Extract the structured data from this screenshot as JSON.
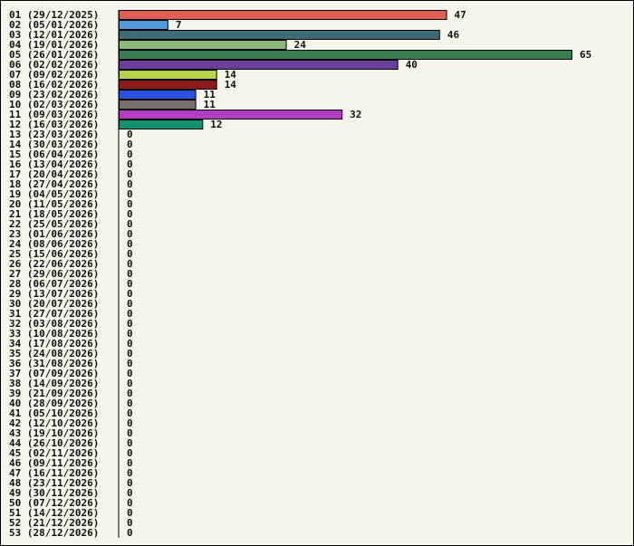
{
  "chart_data": {
    "type": "bar",
    "orientation": "horizontal",
    "title": "",
    "xlabel": "",
    "ylabel": "",
    "grid": false,
    "legend": "none",
    "xlim": [
      0,
      65
    ],
    "categories": [
      "01 (29/12/2025)",
      "02 (05/01/2026)",
      "03 (12/01/2026)",
      "04 (19/01/2026)",
      "05 (26/01/2026)",
      "06 (02/02/2026)",
      "07 (09/02/2026)",
      "08 (16/02/2026)",
      "09 (23/02/2026)",
      "10 (02/03/2026)",
      "11 (09/03/2026)",
      "12 (16/03/2026)",
      "13 (23/03/2026)",
      "14 (30/03/2026)",
      "15 (06/04/2026)",
      "16 (13/04/2026)",
      "17 (20/04/2026)",
      "18 (27/04/2026)",
      "19 (04/05/2026)",
      "20 (11/05/2026)",
      "21 (18/05/2026)",
      "22 (25/05/2026)",
      "23 (01/06/2026)",
      "24 (08/06/2026)",
      "25 (15/06/2026)",
      "26 (22/06/2026)",
      "27 (29/06/2026)",
      "28 (06/07/2026)",
      "29 (13/07/2026)",
      "30 (20/07/2026)",
      "31 (27/07/2026)",
      "32 (03/08/2026)",
      "33 (10/08/2026)",
      "34 (17/08/2026)",
      "35 (24/08/2026)",
      "36 (31/08/2026)",
      "37 (07/09/2026)",
      "38 (14/09/2026)",
      "39 (21/09/2026)",
      "40 (28/09/2026)",
      "41 (05/10/2026)",
      "42 (12/10/2026)",
      "43 (19/10/2026)",
      "44 (26/10/2026)",
      "45 (02/11/2026)",
      "46 (09/11/2026)",
      "47 (16/11/2026)",
      "48 (23/11/2026)",
      "49 (30/11/2026)",
      "50 (07/12/2026)",
      "51 (14/12/2026)",
      "52 (21/12/2026)",
      "53 (28/12/2026)"
    ],
    "values": [
      47,
      7,
      46,
      24,
      65,
      40,
      14,
      14,
      11,
      11,
      32,
      12,
      0,
      0,
      0,
      0,
      0,
      0,
      0,
      0,
      0,
      0,
      0,
      0,
      0,
      0,
      0,
      0,
      0,
      0,
      0,
      0,
      0,
      0,
      0,
      0,
      0,
      0,
      0,
      0,
      0,
      0,
      0,
      0,
      0,
      0,
      0,
      0,
      0,
      0,
      0,
      0,
      0
    ],
    "colors": [
      "#dd6055",
      "#5599dd",
      "#3f6b75",
      "#8ab87a",
      "#3a7d55",
      "#6a3f9c",
      "#b8d44a",
      "#8c1a1a",
      "#2952e0",
      "#7a6f6f",
      "#b23ec2",
      "#139070"
    ]
  }
}
